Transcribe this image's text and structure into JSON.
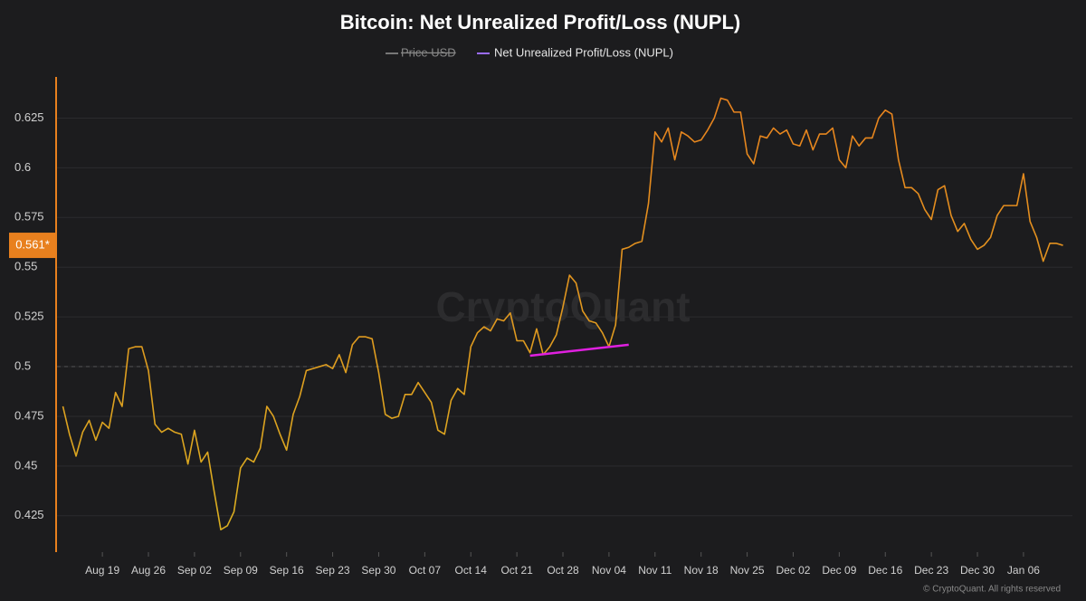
{
  "chart_data": {
    "type": "line",
    "title": "Bitcoin: Net Unrealized Profit/Loss (NUPL)",
    "legend_hidden": [
      "Price USD"
    ],
    "watermark": "CryptoQuant",
    "footer": "© CryptoQuant. All rights reserved",
    "last_value_label": "0.561*",
    "reference_line": 0.5,
    "x": [
      "Aug 13",
      "Aug 14",
      "Aug 15",
      "Aug 16",
      "Aug 17",
      "Aug 18",
      "Aug 19",
      "Aug 20",
      "Aug 21",
      "Aug 22",
      "Aug 23",
      "Aug 24",
      "Aug 25",
      "Aug 26",
      "Aug 27",
      "Aug 28",
      "Aug 29",
      "Aug 30",
      "Aug 31",
      "Sep 01",
      "Sep 02",
      "Sep 03",
      "Sep 04",
      "Sep 05",
      "Sep 06",
      "Sep 07",
      "Sep 08",
      "Sep 09",
      "Sep 10",
      "Sep 11",
      "Sep 12",
      "Sep 13",
      "Sep 14",
      "Sep 15",
      "Sep 16",
      "Sep 17",
      "Sep 18",
      "Sep 19",
      "Sep 20",
      "Sep 21",
      "Sep 22",
      "Sep 23",
      "Sep 24",
      "Sep 25",
      "Sep 26",
      "Sep 27",
      "Sep 28",
      "Sep 29",
      "Sep 30",
      "Oct 01",
      "Oct 02",
      "Oct 03",
      "Oct 04",
      "Oct 05",
      "Oct 06",
      "Oct 07",
      "Oct 08",
      "Oct 09",
      "Oct 10",
      "Oct 11",
      "Oct 12",
      "Oct 13",
      "Oct 14",
      "Oct 15",
      "Oct 16",
      "Oct 17",
      "Oct 18",
      "Oct 19",
      "Oct 20",
      "Oct 21",
      "Oct 22",
      "Oct 23",
      "Oct 24",
      "Oct 25",
      "Oct 26",
      "Oct 27",
      "Oct 28",
      "Oct 29",
      "Oct 30",
      "Oct 31",
      "Nov 01",
      "Nov 02",
      "Nov 03",
      "Nov 04",
      "Nov 05",
      "Nov 06",
      "Nov 07",
      "Nov 08",
      "Nov 09",
      "Nov 10",
      "Nov 11",
      "Nov 12",
      "Nov 13",
      "Nov 14",
      "Nov 15",
      "Nov 16",
      "Nov 17",
      "Nov 18",
      "Nov 19",
      "Nov 20",
      "Nov 21",
      "Nov 22",
      "Nov 23",
      "Nov 24",
      "Nov 25",
      "Nov 26",
      "Nov 27",
      "Nov 28",
      "Nov 29",
      "Nov 30",
      "Dec 01",
      "Dec 02",
      "Dec 03",
      "Dec 04",
      "Dec 05",
      "Dec 06",
      "Dec 07",
      "Dec 08",
      "Dec 09",
      "Dec 10",
      "Dec 11",
      "Dec 12",
      "Dec 13",
      "Dec 14",
      "Dec 15",
      "Dec 16",
      "Dec 17",
      "Dec 18",
      "Dec 19",
      "Dec 20",
      "Dec 21",
      "Dec 22",
      "Dec 23",
      "Dec 24",
      "Dec 25",
      "Dec 26",
      "Dec 27",
      "Dec 28",
      "Dec 29",
      "Dec 30",
      "Dec 31",
      "Jan 01",
      "Jan 02",
      "Jan 03",
      "Jan 04",
      "Jan 05",
      "Jan 06",
      "Jan 07",
      "Jan 08",
      "Jan 09",
      "Jan 10",
      "Jan 11",
      "Jan 12"
    ],
    "xticks": [
      "Aug 19",
      "Aug 26",
      "Sep 02",
      "Sep 09",
      "Sep 16",
      "Sep 23",
      "Sep 30",
      "Oct 07",
      "Oct 14",
      "Oct 21",
      "Oct 28",
      "Nov 04",
      "Nov 11",
      "Nov 18",
      "Nov 25",
      "Dec 02",
      "Dec 09",
      "Dec 16",
      "Dec 23",
      "Dec 30",
      "Jan 06"
    ],
    "series": [
      {
        "name": "Net Unrealized Profit/Loss (NUPL)",
        "color": "#e8801e",
        "color_low": "#d8b020",
        "legend_color": "#9a6cff",
        "values": [
          0.48,
          0.466,
          0.455,
          0.467,
          0.473,
          0.463,
          0.472,
          0.469,
          0.487,
          0.48,
          0.509,
          0.51,
          0.51,
          0.498,
          0.471,
          0.467,
          0.469,
          0.467,
          0.466,
          0.451,
          0.468,
          0.452,
          0.457,
          0.437,
          0.418,
          0.42,
          0.427,
          0.449,
          0.454,
          0.452,
          0.459,
          0.48,
          0.475,
          0.466,
          0.458,
          0.476,
          0.485,
          0.498,
          0.499,
          0.5,
          0.501,
          0.499,
          0.506,
          0.497,
          0.511,
          0.515,
          0.515,
          0.514,
          0.497,
          0.476,
          0.474,
          0.475,
          0.486,
          0.486,
          0.492,
          0.487,
          0.482,
          0.468,
          0.466,
          0.483,
          0.489,
          0.486,
          0.51,
          0.517,
          0.52,
          0.518,
          0.524,
          0.523,
          0.527,
          0.513,
          0.513,
          0.507,
          0.519,
          0.506,
          0.51,
          0.516,
          0.53,
          0.546,
          0.542,
          0.528,
          0.523,
          0.522,
          0.517,
          0.51,
          0.521,
          0.559,
          0.56,
          0.562,
          0.563,
          0.582,
          0.618,
          0.613,
          0.62,
          0.604,
          0.618,
          0.616,
          0.613,
          0.614,
          0.619,
          0.625,
          0.635,
          0.634,
          0.628,
          0.628,
          0.607,
          0.602,
          0.616,
          0.615,
          0.62,
          0.617,
          0.619,
          0.612,
          0.611,
          0.619,
          0.609,
          0.617,
          0.617,
          0.62,
          0.604,
          0.6,
          0.616,
          0.611,
          0.615,
          0.615,
          0.625,
          0.629,
          0.627,
          0.604,
          0.59,
          0.59,
          0.587,
          0.579,
          0.574,
          0.589,
          0.591,
          0.576,
          0.568,
          0.572,
          0.564,
          0.559,
          0.561,
          0.565,
          0.576,
          0.581,
          0.581,
          0.581,
          0.597,
          0.573,
          0.565,
          0.553,
          0.562,
          0.562,
          0.561
        ]
      }
    ],
    "trendline": {
      "x": [
        "Oct 23",
        "Nov 07"
      ],
      "y": [
        0.5055,
        0.511
      ],
      "color": "#e020e0"
    },
    "ylim": [
      0.4067,
      0.6457
    ],
    "yticks": [
      0.425,
      0.45,
      0.475,
      0.5,
      0.525,
      0.55,
      0.575,
      0.6,
      0.625
    ],
    "grid": true
  }
}
